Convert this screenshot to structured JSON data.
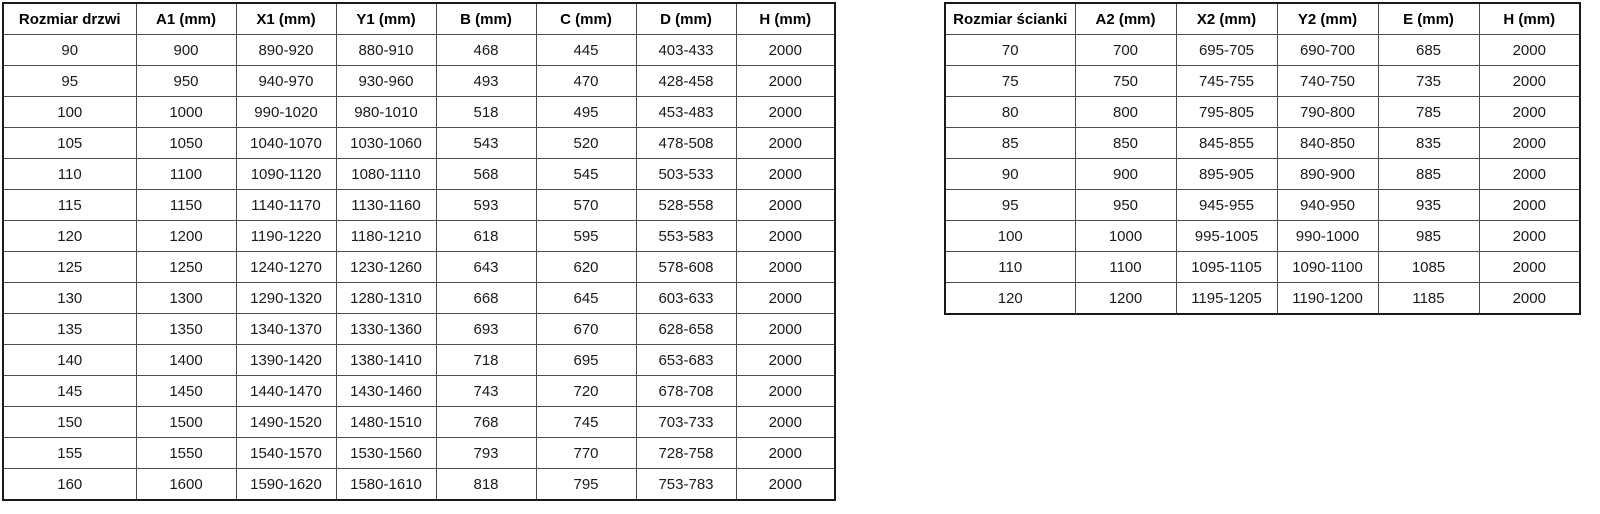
{
  "tables": {
    "door": {
      "name": "door-size-table",
      "headers": [
        "Rozmiar drzwi",
        "A1 (mm)",
        "X1 (mm)",
        "Y1 (mm)",
        "B (mm)",
        "C (mm)",
        "D (mm)",
        "H (mm)"
      ],
      "rows": [
        [
          "90",
          "900",
          "890-920",
          "880-910",
          "468",
          "445",
          "403-433",
          "2000"
        ],
        [
          "95",
          "950",
          "940-970",
          "930-960",
          "493",
          "470",
          "428-458",
          "2000"
        ],
        [
          "100",
          "1000",
          "990-1020",
          "980-1010",
          "518",
          "495",
          "453-483",
          "2000"
        ],
        [
          "105",
          "1050",
          "1040-1070",
          "1030-1060",
          "543",
          "520",
          "478-508",
          "2000"
        ],
        [
          "110",
          "1100",
          "1090-1120",
          "1080-1110",
          "568",
          "545",
          "503-533",
          "2000"
        ],
        [
          "115",
          "1150",
          "1140-1170",
          "1130-1160",
          "593",
          "570",
          "528-558",
          "2000"
        ],
        [
          "120",
          "1200",
          "1190-1220",
          "1180-1210",
          "618",
          "595",
          "553-583",
          "2000"
        ],
        [
          "125",
          "1250",
          "1240-1270",
          "1230-1260",
          "643",
          "620",
          "578-608",
          "2000"
        ],
        [
          "130",
          "1300",
          "1290-1320",
          "1280-1310",
          "668",
          "645",
          "603-633",
          "2000"
        ],
        [
          "135",
          "1350",
          "1340-1370",
          "1330-1360",
          "693",
          "670",
          "628-658",
          "2000"
        ],
        [
          "140",
          "1400",
          "1390-1420",
          "1380-1410",
          "718",
          "695",
          "653-683",
          "2000"
        ],
        [
          "145",
          "1450",
          "1440-1470",
          "1430-1460",
          "743",
          "720",
          "678-708",
          "2000"
        ],
        [
          "150",
          "1500",
          "1490-1520",
          "1480-1510",
          "768",
          "745",
          "703-733",
          "2000"
        ],
        [
          "155",
          "1550",
          "1540-1570",
          "1530-1560",
          "793",
          "770",
          "728-758",
          "2000"
        ],
        [
          "160",
          "1600",
          "1590-1620",
          "1580-1610",
          "818",
          "795",
          "753-783",
          "2000"
        ]
      ]
    },
    "wall": {
      "name": "wall-size-table",
      "headers": [
        "Rozmiar ścianki",
        "A2 (mm)",
        "X2 (mm)",
        "Y2 (mm)",
        "E (mm)",
        "H (mm)"
      ],
      "rows": [
        [
          "70",
          "700",
          "695-705",
          "690-700",
          "685",
          "2000"
        ],
        [
          "75",
          "750",
          "745-755",
          "740-750",
          "735",
          "2000"
        ],
        [
          "80",
          "800",
          "795-805",
          "790-800",
          "785",
          "2000"
        ],
        [
          "85",
          "850",
          "845-855",
          "840-850",
          "835",
          "2000"
        ],
        [
          "90",
          "900",
          "895-905",
          "890-900",
          "885",
          "2000"
        ],
        [
          "95",
          "950",
          "945-955",
          "940-950",
          "935",
          "2000"
        ],
        [
          "100",
          "1000",
          "995-1005",
          "990-1000",
          "985",
          "2000"
        ],
        [
          "110",
          "1100",
          "1095-1105",
          "1090-1100",
          "1085",
          "2000"
        ],
        [
          "120",
          "1200",
          "1195-1205",
          "1190-1200",
          "1185",
          "2000"
        ]
      ]
    }
  },
  "colors": {
    "background": "#ffffff",
    "inner_border": "#4d4d4d",
    "outer_border": "#1a1a1a",
    "text": "#000000"
  }
}
